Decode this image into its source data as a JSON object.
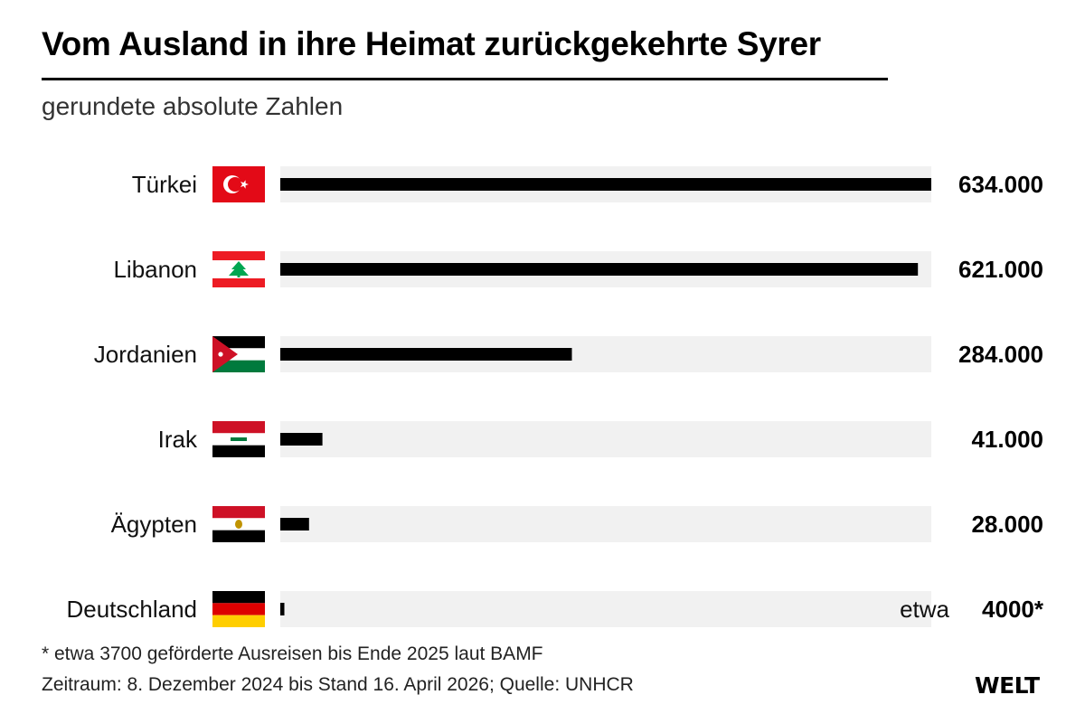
{
  "title": "Vom Ausland in ihre Heimat zurückgekehrte Syrer",
  "subtitle": "gerundete absolute Zahlen",
  "chart_data": {
    "type": "bar",
    "orientation": "horizontal",
    "categories": [
      "Türkei",
      "Libanon",
      "Jordanien",
      "Irak",
      "Ägypten",
      "Deutschland"
    ],
    "values": [
      634000,
      621000,
      284000,
      41000,
      28000,
      4000
    ],
    "value_labels": [
      "634.000",
      "621.000",
      "284.000",
      "41.000",
      "28.000",
      "4000*"
    ],
    "value_prefixes": [
      "",
      "",
      "",
      "",
      "",
      "etwa"
    ],
    "flags": [
      "turkey-flag",
      "lebanon-flag",
      "jordan-flag",
      "iraq-flag",
      "egypt-flag",
      "germany-flag"
    ],
    "xlim": [
      0,
      634000
    ],
    "bar_color": "#000000",
    "track_color": "#f1f1f1",
    "grid": false,
    "legend": "none"
  },
  "footnotes": {
    "note": "* etwa 3700 geförderte Ausreisen bis Ende 2025 laut BAMF",
    "source": "Zeitraum: 8. Dezember 2024 bis Stand 16. April 2026; Quelle: UNHCR"
  },
  "logo": "WELT"
}
